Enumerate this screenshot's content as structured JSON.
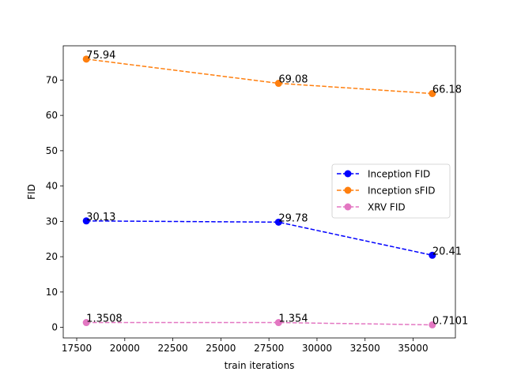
{
  "chart_data": {
    "type": "line",
    "title": "",
    "xlabel": "train iterations",
    "ylabel": "FID",
    "xlim": [
      16800,
      37200
    ],
    "ylim": [
      -3.0,
      79.7
    ],
    "xticks": [
      {
        "value": 17500,
        "label": "17500"
      },
      {
        "value": 20000,
        "label": "20000"
      },
      {
        "value": 22500,
        "label": "22500"
      },
      {
        "value": 25000,
        "label": "25000"
      },
      {
        "value": 27500,
        "label": "27500"
      },
      {
        "value": 30000,
        "label": "30000"
      },
      {
        "value": 32500,
        "label": "32500"
      },
      {
        "value": 35000,
        "label": "35000"
      }
    ],
    "yticks": [
      {
        "value": 0,
        "label": "0"
      },
      {
        "value": 10,
        "label": "10"
      },
      {
        "value": 20,
        "label": "20"
      },
      {
        "value": 30,
        "label": "30"
      },
      {
        "value": 40,
        "label": "40"
      },
      {
        "value": 50,
        "label": "50"
      },
      {
        "value": 60,
        "label": "60"
      },
      {
        "value": 70,
        "label": "70"
      }
    ],
    "grid": false,
    "legend_position": "center-right",
    "x": [
      18000,
      28000,
      36000
    ],
    "series": [
      {
        "name": "Inception FID",
        "color": "#0000ff",
        "values": [
          30.13,
          29.78,
          20.41
        ],
        "labels": [
          "30.13",
          "29.78",
          "20.41"
        ]
      },
      {
        "name": "Inception sFID",
        "color": "#ff7f0e",
        "values": [
          75.94,
          69.08,
          66.18
        ],
        "labels": [
          "75.94",
          "69.08",
          "66.18"
        ]
      },
      {
        "name": "XRV FID",
        "color": "#e377c2",
        "values": [
          1.3508,
          1.354,
          0.7101
        ],
        "labels": [
          "1.3508",
          "1.354",
          "0.7101"
        ]
      }
    ]
  }
}
